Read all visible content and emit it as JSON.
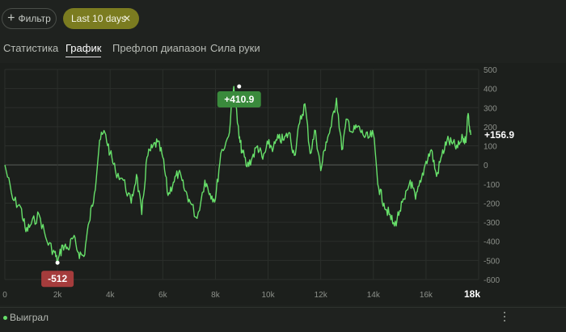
{
  "toolbar": {
    "filter_label": "Фильтр",
    "chip_label": "Last 10 days"
  },
  "tabs": [
    {
      "label": "Статистика",
      "active": false
    },
    {
      "label": "График",
      "active": true
    },
    {
      "label": "Префлоп диапазон",
      "active": false
    },
    {
      "label": "Сила руки",
      "active": false
    }
  ],
  "chart_data": {
    "type": "line",
    "title": "",
    "xlabel": "",
    "ylabel": "",
    "xlim": [
      0,
      18000
    ],
    "ylim": [
      -600,
      500
    ],
    "x_ticks": [
      "0",
      "2k",
      "4k",
      "6k",
      "8k",
      "10k",
      "12k",
      "14k",
      "16k",
      "18k"
    ],
    "y_ticks": [
      "500",
      "400",
      "300",
      "200",
      "100",
      "0",
      "-100",
      "-200",
      "-300",
      "-400",
      "-500",
      "-600"
    ],
    "series": [
      {
        "name": "Выиграл",
        "color": "#67e06a",
        "x": [
          0,
          300,
          600,
          800,
          1000,
          1300,
          1600,
          1900,
          2000,
          2200,
          2400,
          2600,
          2800,
          3000,
          3200,
          3400,
          3600,
          3800,
          4000,
          4200,
          4500,
          4800,
          5000,
          5200,
          5400,
          5600,
          5800,
          6000,
          6200,
          6400,
          6600,
          6800,
          7000,
          7300,
          7600,
          7800,
          8000,
          8200,
          8500,
          8700,
          8900,
          9000,
          9200,
          9400,
          9600,
          9800,
          10000,
          10200,
          10400,
          10600,
          10800,
          11000,
          11200,
          11400,
          11600,
          11800,
          12000,
          12200,
          12400,
          12600,
          12800,
          13000,
          13200,
          13400,
          13600,
          13800,
          14000,
          14200,
          14400,
          14600,
          14800,
          15000,
          15200,
          15400,
          15600,
          15800,
          16000,
          16200,
          16400,
          16600,
          16800,
          17000,
          17200,
          17400,
          17500,
          17600,
          17700
        ],
        "y": [
          0,
          -180,
          -220,
          -350,
          -310,
          -260,
          -400,
          -460,
          -512,
          -420,
          -440,
          -380,
          -460,
          -480,
          -300,
          -150,
          130,
          170,
          60,
          -30,
          -80,
          -200,
          -50,
          -260,
          40,
          90,
          120,
          40,
          -160,
          -90,
          -40,
          -120,
          -180,
          -280,
          -80,
          -150,
          -180,
          60,
          150,
          410.9,
          140,
          80,
          -10,
          40,
          100,
          30,
          110,
          90,
          140,
          130,
          170,
          50,
          220,
          320,
          60,
          180,
          -30,
          120,
          200,
          350,
          80,
          240,
          170,
          200,
          160,
          140,
          160,
          -120,
          -200,
          -260,
          -320,
          -240,
          -180,
          -80,
          -180,
          -90,
          20,
          80,
          -60,
          50,
          130,
          110,
          90,
          140,
          120,
          270,
          156.9
        ]
      }
    ],
    "annotations": [
      {
        "label": "+410.9",
        "x": 8900,
        "y": 410.9,
        "color": "#3a8a3c"
      },
      {
        "label": "-512",
        "x": 2000,
        "y": -512,
        "color": "#a53c3c"
      }
    ],
    "end_label": "+156.9",
    "grid": true,
    "legend": "bottom-left"
  },
  "legend": {
    "label": "Выиграл"
  }
}
